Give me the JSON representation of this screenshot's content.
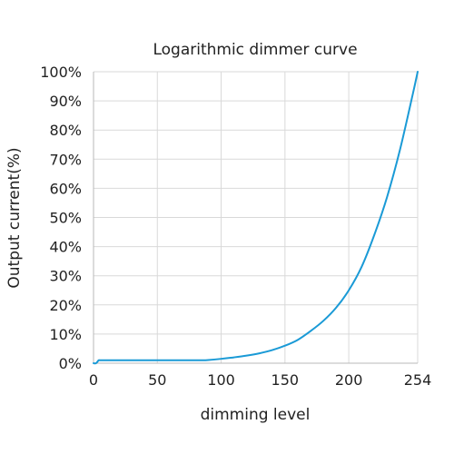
{
  "chart_data": {
    "type": "line",
    "title": "Logarithmic dimmer curve",
    "xlabel": "dimming level",
    "ylabel": "Output current(%)",
    "xlim": [
      0,
      254
    ],
    "ylim": [
      0,
      100
    ],
    "grid": true,
    "x_ticks": [
      0,
      50,
      100,
      150,
      200,
      254
    ],
    "x_tick_labels": [
      "0",
      "50",
      "100",
      "150",
      "200",
      "254"
    ],
    "y_ticks": [
      0,
      10,
      20,
      30,
      40,
      50,
      60,
      70,
      80,
      90,
      100
    ],
    "y_tick_labels": [
      "0%",
      "10%",
      "20%",
      "30%",
      "40%",
      "50%",
      "60%",
      "70%",
      "80%",
      "90%",
      "100%"
    ],
    "series": [
      {
        "color": "#1a9ad6",
        "x": [
          0,
          2,
          4,
          5,
          10,
          20,
          40,
          60,
          80,
          85,
          90,
          100,
          110,
          120,
          130,
          140,
          150,
          160,
          170,
          180,
          190,
          200,
          210,
          220,
          230,
          240,
          250,
          254
        ],
        "y": [
          0,
          0,
          1,
          1,
          1,
          1,
          1,
          1,
          1,
          1,
          1.1,
          1.5,
          2,
          2.6,
          3.4,
          4.5,
          6,
          8,
          11,
          14.5,
          19,
          25,
          33,
          44,
          57,
          73,
          92,
          100
        ]
      }
    ]
  }
}
